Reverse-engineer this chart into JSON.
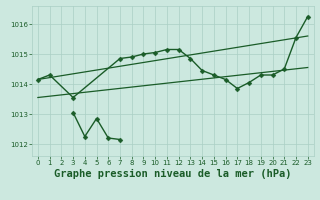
{
  "background_color": "#cce8df",
  "grid_color": "#aacfc5",
  "line_color": "#1a5c28",
  "title": "Graphe pression niveau de la mer (hPa)",
  "xlim": [
    -0.5,
    23.5
  ],
  "ylim": [
    1011.6,
    1016.6
  ],
  "yticks": [
    1012,
    1013,
    1014,
    1015,
    1016
  ],
  "xticks": [
    0,
    1,
    2,
    3,
    4,
    5,
    6,
    7,
    8,
    9,
    10,
    11,
    12,
    13,
    14,
    15,
    16,
    17,
    18,
    19,
    20,
    21,
    22,
    23
  ],
  "trend1_x": [
    0,
    23
  ],
  "trend1_y": [
    1014.15,
    1015.6
  ],
  "trend2_x": [
    0,
    23
  ],
  "trend2_y": [
    1013.55,
    1014.55
  ],
  "line_main_x": [
    0,
    1,
    3,
    7,
    8,
    9,
    10,
    11,
    12,
    13,
    14,
    15,
    16,
    17,
    18,
    19,
    20,
    21,
    22,
    23
  ],
  "line_main_y": [
    1014.15,
    1014.3,
    1013.55,
    1014.85,
    1014.9,
    1015.0,
    1015.05,
    1015.15,
    1015.15,
    1014.85,
    1014.45,
    1014.3,
    1014.15,
    1013.85,
    1014.05,
    1014.3,
    1014.3,
    1014.5,
    1015.55,
    1016.25
  ],
  "line_dip_x": [
    3,
    4,
    5,
    6,
    7
  ],
  "line_dip_y": [
    1013.05,
    1012.25,
    1012.85,
    1012.2,
    1012.15
  ],
  "marker": "D",
  "marker_size": 2.5,
  "lw_main": 1.0,
  "lw_trend": 0.9,
  "title_fontsize": 7.5,
  "tick_fontsize": 5.0
}
